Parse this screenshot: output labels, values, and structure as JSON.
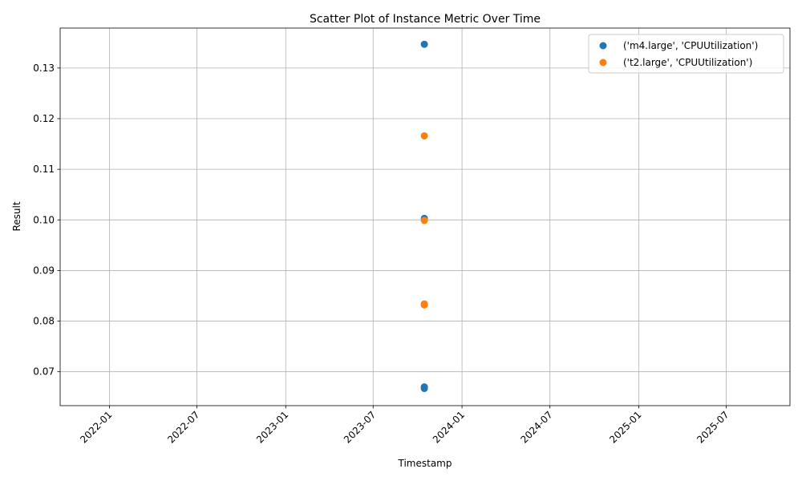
{
  "chart_data": {
    "type": "scatter",
    "title": "Scatter Plot of Instance Metric Over Time",
    "xlabel": "Timestamp",
    "ylabel": "Result",
    "grid": true,
    "legend_position": "top-right",
    "xlim": [
      "2021-09-21",
      "2025-11-10"
    ],
    "ylim": [
      0.0633,
      0.1379
    ],
    "x_ticks": [
      "2022-01",
      "2022-07",
      "2023-01",
      "2023-07",
      "2024-01",
      "2024-07",
      "2025-01",
      "2025-07"
    ],
    "y_ticks": [
      "0.07",
      "0.08",
      "0.09",
      "0.10",
      "0.11",
      "0.12",
      "0.13"
    ],
    "series": [
      {
        "name": "('m4.large', 'CPUUtilization')",
        "color": "#1f77b4",
        "points": [
          {
            "x": "2023-10-15",
            "y": 0.1347
          },
          {
            "x": "2023-10-15",
            "y": 0.1003
          },
          {
            "x": "2023-10-15",
            "y": 0.067
          },
          {
            "x": "2023-10-15",
            "y": 0.0667
          }
        ]
      },
      {
        "name": "('t2.large', 'CPUUtilization')",
        "color": "#ff7f0e",
        "points": [
          {
            "x": "2023-10-15",
            "y": 0.1166
          },
          {
            "x": "2023-10-15",
            "y": 0.0999
          },
          {
            "x": "2023-10-15",
            "y": 0.0834
          },
          {
            "x": "2023-10-15",
            "y": 0.0832
          }
        ]
      }
    ]
  }
}
